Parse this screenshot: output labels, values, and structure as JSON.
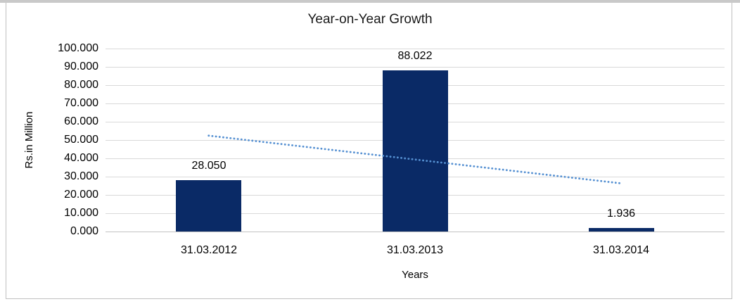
{
  "chart_data": {
    "type": "bar",
    "title": "Year-on-Year Growth",
    "categories": [
      "31.03.2012",
      "31.03.2013",
      "31.03.2014"
    ],
    "values": [
      28.05,
      88.022,
      1.936
    ],
    "data_labels": [
      "28.050",
      "88.022",
      "1.936"
    ],
    "xlabel": "Years",
    "ylabel": "Rs.in Million",
    "ylim": [
      0,
      100
    ],
    "ytick_step": 10,
    "ytick_labels": [
      "0.000",
      "10.000",
      "20.000",
      "30.000",
      "40.000",
      "50.000",
      "60.000",
      "70.000",
      "80.000",
      "90.000",
      "100.000"
    ],
    "grid": true,
    "legend": "none",
    "trendline": {
      "style": "dotted",
      "shape": "linear",
      "points": [
        {
          "x": 1,
          "y": 52.4
        },
        {
          "x": 3,
          "y": 26.3
        }
      ]
    },
    "colors": {
      "bar": "#0a2a66",
      "trendline": "#5590d2",
      "gridline": "#d9d9d9",
      "axis_line": "#c3c3c3",
      "text": "#000000",
      "frame": "#bfbfbf"
    }
  }
}
